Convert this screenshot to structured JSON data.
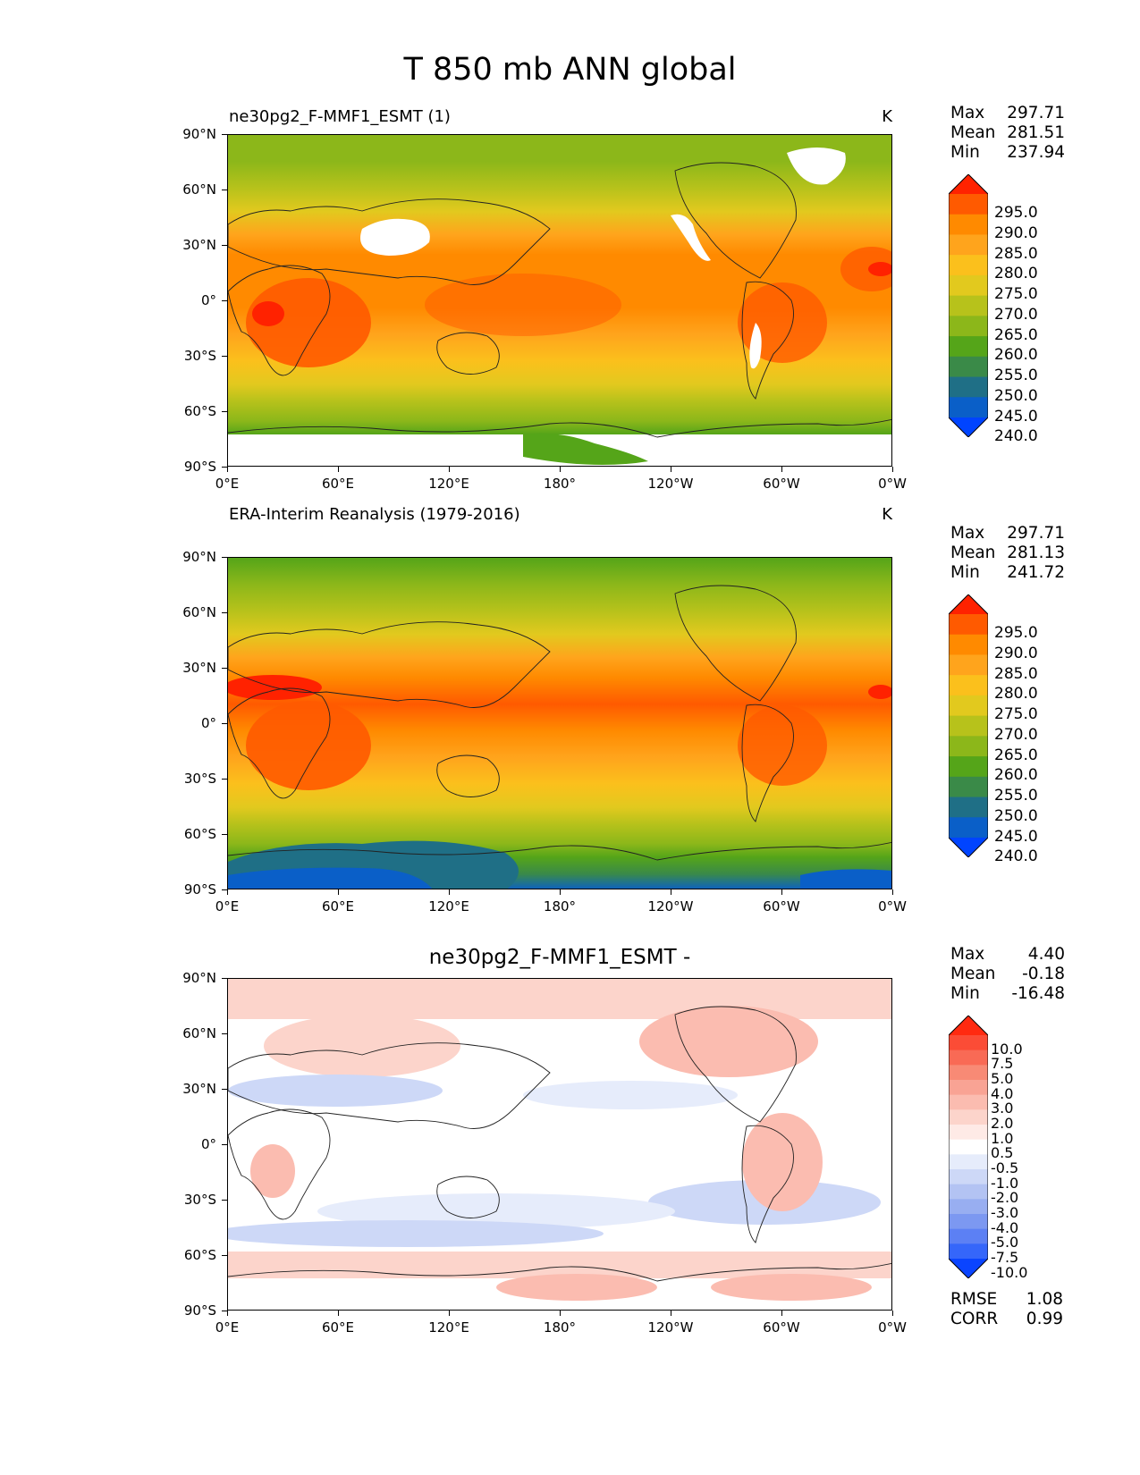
{
  "title": "T 850 mb ANN global",
  "lat_ticks": [
    "90°N",
    "60°N",
    "30°N",
    "0°",
    "30°S",
    "60°S",
    "90°S"
  ],
  "lon_ticks": [
    "0°E",
    "60°E",
    "120°E",
    "180°",
    "120°W",
    "60°W",
    "0°W"
  ],
  "panels": [
    {
      "title_left": "ne30pg2_F-MMF1_ESMT (1)",
      "units": "K",
      "stats": {
        "max_label": "Max",
        "max": "297.71",
        "mean_label": "Mean",
        "mean": "281.51",
        "min_label": "Min",
        "min": "237.94"
      },
      "colorbar": {
        "levels": [
          "295.0",
          "290.0",
          "285.0",
          "280.0",
          "275.0",
          "270.0",
          "265.0",
          "260.0",
          "255.0",
          "250.0",
          "245.0",
          "240.0"
        ],
        "colors": [
          "#ff2200",
          "#ff5a00",
          "#ff8a00",
          "#ffa41c",
          "#fbc01c",
          "#e2c91e",
          "#b7c21b",
          "#8cb71a",
          "#55a519",
          "#3a8a48",
          "#1f6f86",
          "#0a5fc8",
          "#0044ff"
        ]
      }
    },
    {
      "title_left": "ERA-Interim Reanalysis (1979-2016)",
      "units": "K",
      "stats": {
        "max_label": "Max",
        "max": "297.71",
        "mean_label": "Mean",
        "mean": "281.13",
        "min_label": "Min",
        "min": "241.72"
      },
      "colorbar": {
        "levels": [
          "295.0",
          "290.0",
          "285.0",
          "280.0",
          "275.0",
          "270.0",
          "265.0",
          "260.0",
          "255.0",
          "250.0",
          "245.0",
          "240.0"
        ],
        "colors": [
          "#ff2200",
          "#ff5a00",
          "#ff8a00",
          "#ffa41c",
          "#fbc01c",
          "#e2c91e",
          "#b7c21b",
          "#8cb71a",
          "#55a519",
          "#3a8a48",
          "#1f6f86",
          "#0a5fc8",
          "#0044ff"
        ]
      }
    },
    {
      "title_center": "ne30pg2_F-MMF1_ESMT -",
      "stats": {
        "max_label": "Max",
        "max": "4.40",
        "mean_label": "Mean",
        "mean": "-0.18",
        "min_label": "Min",
        "min": "-16.48"
      },
      "colorbar": {
        "levels": [
          "10.0",
          "7.5",
          "5.0",
          "4.0",
          "3.0",
          "2.0",
          "1.0",
          "0.5",
          "-0.5",
          "-1.0",
          "-2.0",
          "-3.0",
          "-4.0",
          "-5.0",
          "-7.5",
          "-10.0"
        ],
        "colors": [
          "#ff2a10",
          "#fb4c36",
          "#f96a55",
          "#f88a75",
          "#f9a394",
          "#fbbcb0",
          "#fcd4cb",
          "#feeae6",
          "#ffffff",
          "#e6ecfb",
          "#cdd8f7",
          "#b3c3f3",
          "#98aef1",
          "#7c98f1",
          "#5c80f4",
          "#3566fa",
          "#0a44ff"
        ]
      },
      "metrics": {
        "rmse_label": "RMSE",
        "rmse": "1.08",
        "corr_label": "CORR",
        "corr": "0.99"
      }
    }
  ]
}
